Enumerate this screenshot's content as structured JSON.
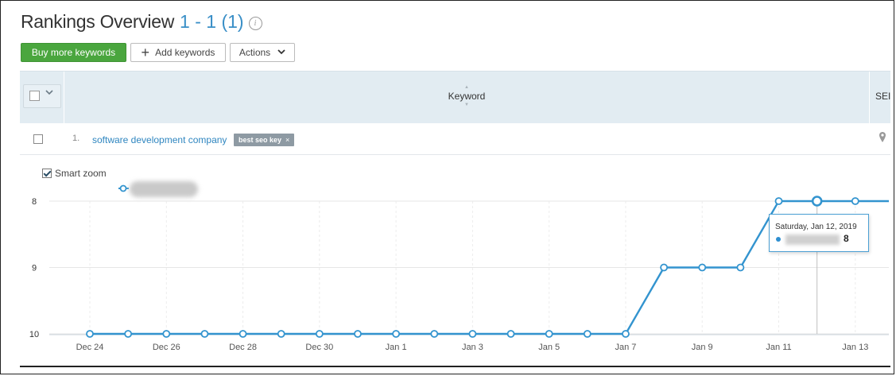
{
  "header": {
    "title": "Rankings Overview",
    "count": "1 - 1 (1)",
    "info_icon": "info-icon"
  },
  "toolbar": {
    "buy_label": "Buy more keywords",
    "add_label": "Add keywords",
    "actions_label": "Actions"
  },
  "table": {
    "columns": {
      "keyword": "Keyword",
      "se_partial": "SEI"
    },
    "rows": [
      {
        "num": "1.",
        "keyword": "software development company",
        "tag": "best seo key",
        "tag_remove": "×"
      }
    ]
  },
  "chart_controls": {
    "smart_zoom_label": "Smart zoom",
    "smart_zoom_checked": true
  },
  "tooltip": {
    "date": "Saturday, Jan 12, 2019",
    "value": "8"
  },
  "colors": {
    "accent": "#3a8fc7",
    "buy_button": "#4aa63e",
    "series_line": "#3394cf",
    "header_bg": "#e2ecf2"
  },
  "chart_data": {
    "type": "line",
    "x_tick_labels": [
      "Dec 24",
      "Dec 26",
      "Dec 28",
      "Dec 30",
      "Jan 1",
      "Jan 3",
      "Jan 5",
      "Jan 7",
      "Jan 9",
      "Jan 11",
      "Jan 13"
    ],
    "y_tick_labels": [
      "8",
      "9",
      "10"
    ],
    "ylim": [
      8,
      10
    ],
    "y_inverted": true,
    "grid": true,
    "series": [
      {
        "points": [
          {
            "x": "2018-12-24",
            "y": 10
          },
          {
            "x": "2018-12-25",
            "y": 10
          },
          {
            "x": "2018-12-26",
            "y": 10
          },
          {
            "x": "2018-12-27",
            "y": 10
          },
          {
            "x": "2018-12-28",
            "y": 10
          },
          {
            "x": "2018-12-29",
            "y": 10
          },
          {
            "x": "2018-12-30",
            "y": 10
          },
          {
            "x": "2018-12-31",
            "y": 10
          },
          {
            "x": "2019-01-01",
            "y": 10
          },
          {
            "x": "2019-01-02",
            "y": 10
          },
          {
            "x": "2019-01-03",
            "y": 10
          },
          {
            "x": "2019-01-04",
            "y": 10
          },
          {
            "x": "2019-01-05",
            "y": 10
          },
          {
            "x": "2019-01-06",
            "y": 10
          },
          {
            "x": "2019-01-07",
            "y": 10
          },
          {
            "x": "2019-01-08",
            "y": 9
          },
          {
            "x": "2019-01-09",
            "y": 9
          },
          {
            "x": "2019-01-10",
            "y": 9
          },
          {
            "x": "2019-01-11",
            "y": 8
          },
          {
            "x": "2019-01-12",
            "y": 8
          },
          {
            "x": "2019-01-13",
            "y": 8
          }
        ],
        "highlighted_x": "2019-01-12"
      }
    ]
  }
}
